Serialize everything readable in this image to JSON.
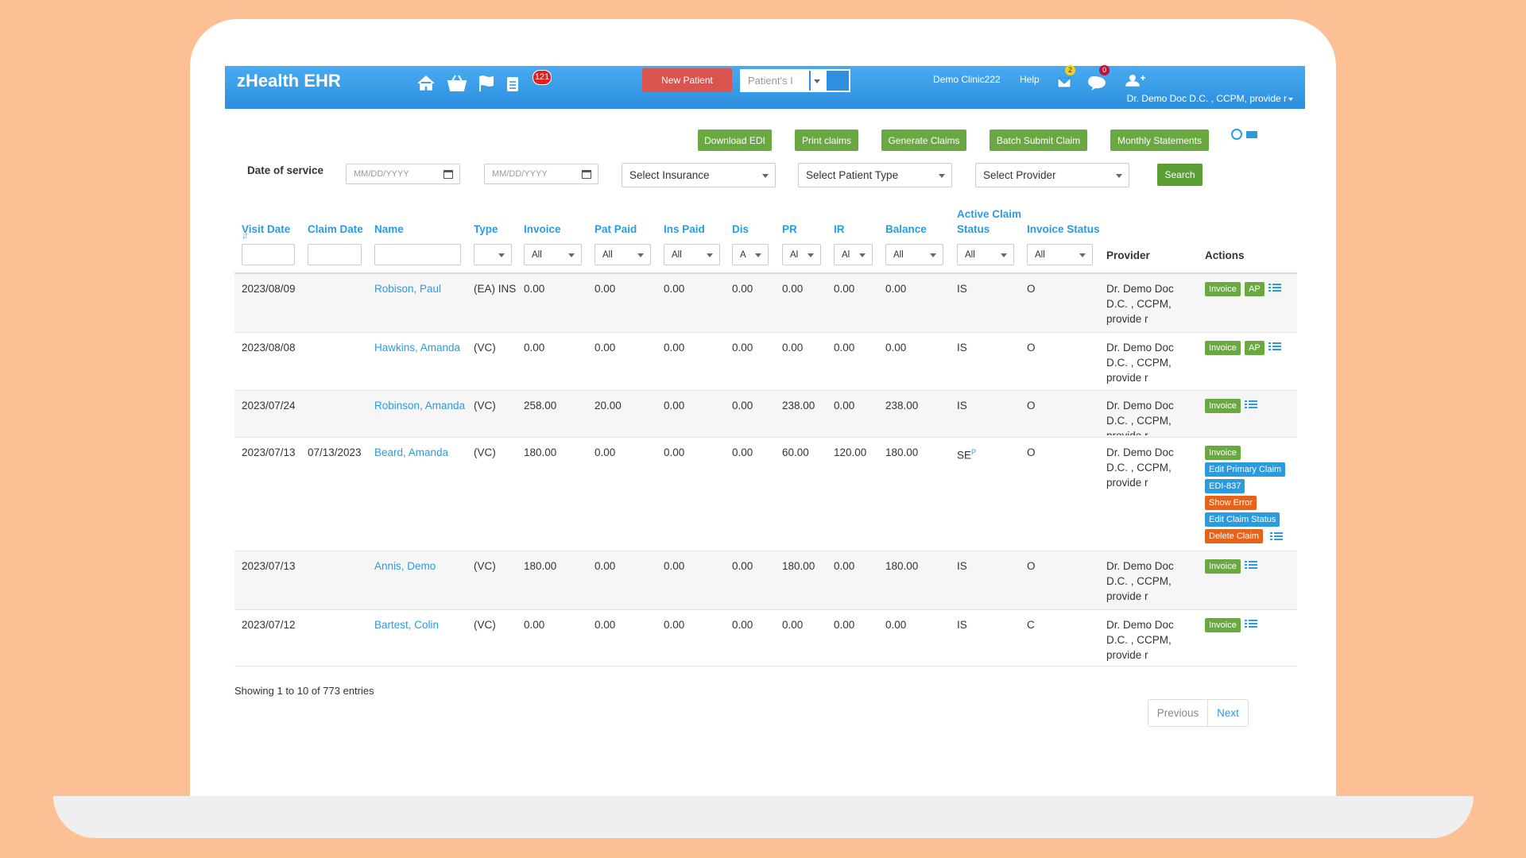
{
  "header": {
    "brand": "zHealth EHR",
    "badge": "121",
    "new_patient": "New Patient",
    "search_placeholder": "Patient's I",
    "clinic": "Demo Clinic222",
    "help": "Help",
    "mail_badge": "2",
    "chat_badge": "0",
    "user": "Dr. Demo Doc D.C. , CCPM, provide r"
  },
  "toolbar": {
    "buttons": [
      "Download EDI",
      "Print claims",
      "Generate Claims",
      "Batch Submit Claim",
      "Monthly Statements"
    ]
  },
  "filters": {
    "label": "Date of service",
    "date_placeholders": [
      "MM/DD/YYYY",
      "MM/DD/YYYY"
    ],
    "selects": [
      "Select Insurance",
      "Select Patient Type",
      "Select Provider"
    ],
    "search": "Search"
  },
  "table": {
    "columns": [
      "Visit Date",
      "Claim Date",
      "Name",
      "Type",
      "Invoice",
      "Pat Paid",
      "Ins Paid",
      "Dis",
      "PR",
      "IR",
      "Balance",
      "Active Claim Status",
      "Invoice Status",
      "Provider",
      "Actions"
    ],
    "column_filters": [
      null,
      null,
      null,
      null,
      "All",
      "All",
      "All",
      "A",
      "Al",
      "Al",
      "All",
      "All",
      "All",
      null,
      null
    ],
    "rows": [
      {
        "cells": [
          "2023/08/09",
          null,
          "Robison, Paul",
          "(EA) INS",
          "0.00",
          "0.00",
          "0.00",
          "0.00",
          "0.00",
          "0.00",
          "0.00",
          "IS",
          "O"
        ],
        "provider": "Dr. Demo Doc D.C. , CCPM, provide r",
        "actions": [
          {
            "label": "Invoice",
            "color": "#6aa842"
          },
          {
            "label": "AP",
            "color": "#6aa842"
          }
        ]
      },
      {
        "cells": [
          "2023/08/08",
          null,
          "Hawkins, Amanda",
          "(VC)",
          "0.00",
          "0.00",
          "0.00",
          "0.00",
          "0.00",
          "0.00",
          "0.00",
          "IS",
          "O"
        ],
        "provider": "Dr. Demo Doc D.C. , CCPM, provide r",
        "actions": [
          {
            "label": "Invoice",
            "color": "#6aa842"
          },
          {
            "label": "AP",
            "color": "#6aa842"
          }
        ]
      },
      {
        "cells": [
          "2023/07/24",
          null,
          "Robinson, Amanda",
          "(VC)",
          "258.00",
          "20.00",
          "0.00",
          "0.00",
          "238.00",
          "0.00",
          "238.00",
          "IS",
          "O"
        ],
        "provider": "Dr. Demo Doc D.C. , CCPM, provide r",
        "actions": [
          {
            "label": "Invoice",
            "color": "#6aa842"
          }
        ]
      },
      {
        "cells": [
          "2023/07/13",
          "07/13/2023",
          "Beard, Amanda",
          "(VC)",
          "180.00",
          "0.00",
          "0.00",
          "0.00",
          "60.00",
          "120.00",
          "180.00",
          {
            "text": "SE",
            "sup": "P"
          },
          "O"
        ],
        "provider": "Dr. Demo Doc D.C. , CCPM, provide r",
        "actions": [
          {
            "label": "Invoice",
            "color": "#6aa842"
          },
          {
            "label": "Edit Primary Claim",
            "color": "#2b9be0"
          },
          {
            "label": "EDI-837",
            "color": "#2b9be0"
          },
          {
            "label": "Show Error",
            "color": "#e8631a"
          },
          {
            "label": "Edit Claim Status",
            "color": "#2b9be0"
          },
          {
            "label": "Delete Claim",
            "color": "#e8631a"
          }
        ]
      },
      {
        "cells": [
          "2023/07/13",
          null,
          "Annis, Demo",
          "(VC)",
          "180.00",
          "0.00",
          "0.00",
          "0.00",
          "180.00",
          "0.00",
          "180.00",
          "IS",
          "O"
        ],
        "provider": "Dr. Demo Doc D.C. , CCPM, provide r",
        "actions": [
          {
            "label": "Invoice",
            "color": "#6aa842"
          }
        ]
      },
      {
        "cells": [
          "2023/07/12",
          null,
          "Bartest, Colin",
          "(VC)",
          "0.00",
          "0.00",
          "0.00",
          "0.00",
          "0.00",
          "0.00",
          "0.00",
          "IS",
          "C"
        ],
        "provider": "Dr. Demo Doc D.C. , CCPM, provide r",
        "actions": [
          {
            "label": "Invoice",
            "color": "#6aa842"
          }
        ]
      }
    ]
  },
  "footer": {
    "info": "Showing 1 to 10 of 773 entries",
    "previous": "Previous",
    "next": "Next"
  }
}
